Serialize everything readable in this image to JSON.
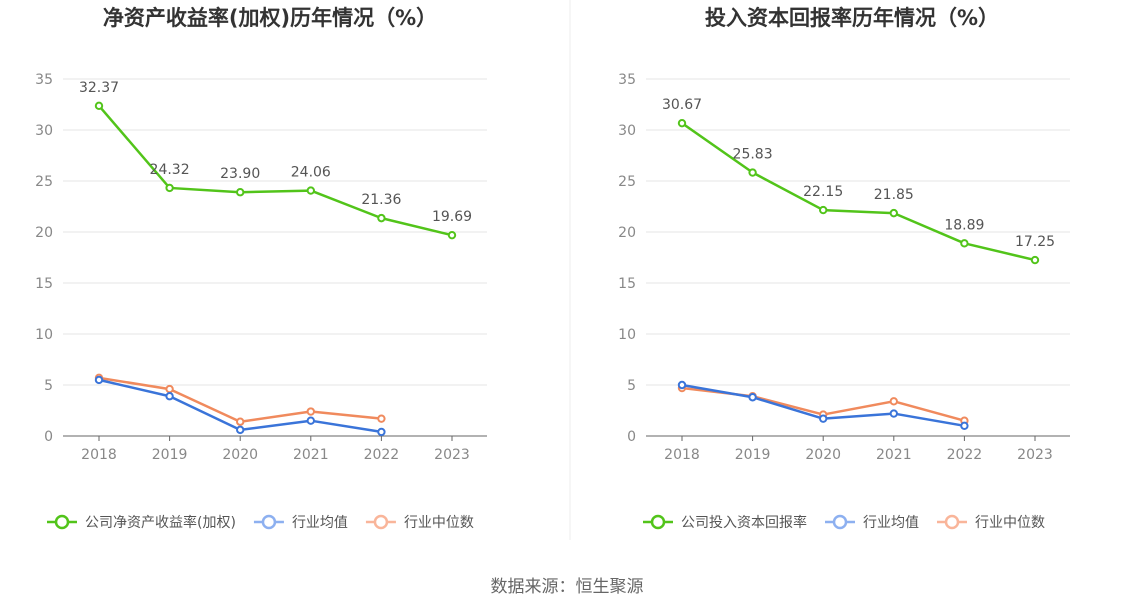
{
  "source": "数据来源：恒生聚源",
  "colors": {
    "company": "#52c41a",
    "avg": "#3a74d9",
    "median": "#f08a5d",
    "legend_avg": "#8db0f0",
    "legend_median": "#f9b59a",
    "grid": "#e6e6e6",
    "axis": "#666666",
    "divider": "#eeeeee"
  },
  "chart_data": [
    {
      "type": "line",
      "title": "净资产收益率(加权)历年情况（%）",
      "categories": [
        "2018",
        "2019",
        "2020",
        "2021",
        "2022",
        "2023"
      ],
      "ylim": [
        0,
        35
      ],
      "yticks": [
        "0",
        "5",
        "10",
        "15",
        "20",
        "25",
        "30",
        "35"
      ],
      "grid": true,
      "legend_position": "bottom",
      "series": [
        {
          "name": "公司净资产收益率(加权)",
          "color": "#52c41a",
          "labels": true,
          "values": [
            32.37,
            24.32,
            23.9,
            24.06,
            21.36,
            19.69
          ],
          "value_labels": [
            "32.37",
            "24.32",
            "23.90",
            "24.06",
            "21.36",
            "19.69"
          ]
        },
        {
          "name": "行业均值",
          "color": "#3a74d9",
          "legend_color": "#8db0f0",
          "labels": false,
          "values": [
            5.5,
            3.9,
            0.6,
            1.5,
            0.4,
            null
          ]
        },
        {
          "name": "行业中位数",
          "color": "#f08a5d",
          "legend_color": "#f9b59a",
          "labels": false,
          "values": [
            5.7,
            4.6,
            1.4,
            2.4,
            1.7,
            null
          ]
        }
      ]
    },
    {
      "type": "line",
      "title": "投入资本回报率历年情况（%）",
      "categories": [
        "2018",
        "2019",
        "2020",
        "2021",
        "2022",
        "2023"
      ],
      "ylim": [
        0,
        35
      ],
      "yticks": [
        "0",
        "5",
        "10",
        "15",
        "20",
        "25",
        "30",
        "35"
      ],
      "grid": true,
      "legend_position": "bottom",
      "series": [
        {
          "name": "公司投入资本回报率",
          "color": "#52c41a",
          "labels": true,
          "values": [
            30.67,
            25.83,
            22.15,
            21.85,
            18.89,
            17.25
          ],
          "value_labels": [
            "30.67",
            "25.83",
            "22.15",
            "21.85",
            "18.89",
            "17.25"
          ]
        },
        {
          "name": "行业均值",
          "color": "#3a74d9",
          "legend_color": "#8db0f0",
          "labels": false,
          "values": [
            5.0,
            3.8,
            1.7,
            2.2,
            1.0,
            null
          ]
        },
        {
          "name": "行业中位数",
          "color": "#f08a5d",
          "legend_color": "#f9b59a",
          "labels": false,
          "values": [
            4.7,
            3.9,
            2.1,
            3.4,
            1.5,
            null
          ]
        }
      ]
    }
  ]
}
